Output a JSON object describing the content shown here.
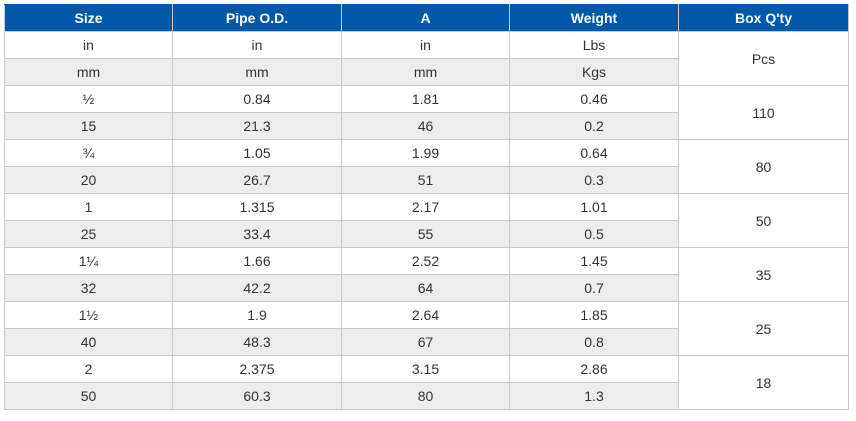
{
  "table": {
    "headers": [
      "Size",
      "Pipe O.D.",
      "A",
      "Weight",
      "Box Q'ty"
    ],
    "units": [
      {
        "cells": [
          "in",
          "in",
          "in",
          "Lbs"
        ]
      },
      {
        "cells": [
          "mm",
          "mm",
          "mm",
          "Kgs"
        ]
      }
    ],
    "units_box_qty": "Pcs",
    "sizes": [
      {
        "inch": [
          "½",
          "0.84",
          "1.81",
          "0.46"
        ],
        "metric": [
          "15",
          "21.3",
          "46",
          "0.2"
        ],
        "box_qty": "110"
      },
      {
        "inch": [
          "¾",
          "1.05",
          "1.99",
          "0.64"
        ],
        "metric": [
          "20",
          "26.7",
          "51",
          "0.3"
        ],
        "box_qty": "80"
      },
      {
        "inch": [
          "1",
          "1.315",
          "2.17",
          "1.01"
        ],
        "metric": [
          "25",
          "33.4",
          "55",
          "0.5"
        ],
        "box_qty": "50"
      },
      {
        "inch": [
          "1¼",
          "1.66",
          "2.52",
          "1.45"
        ],
        "metric": [
          "32",
          "42.2",
          "64",
          "0.7"
        ],
        "box_qty": "35"
      },
      {
        "inch": [
          "1½",
          "1.9",
          "2.64",
          "1.85"
        ],
        "metric": [
          "40",
          "48.3",
          "67",
          "0.8"
        ],
        "box_qty": "25"
      },
      {
        "inch": [
          "2",
          "2.375",
          "3.15",
          "2.86"
        ],
        "metric": [
          "50",
          "60.3",
          "80",
          "1.3"
        ],
        "box_qty": "18"
      }
    ]
  }
}
